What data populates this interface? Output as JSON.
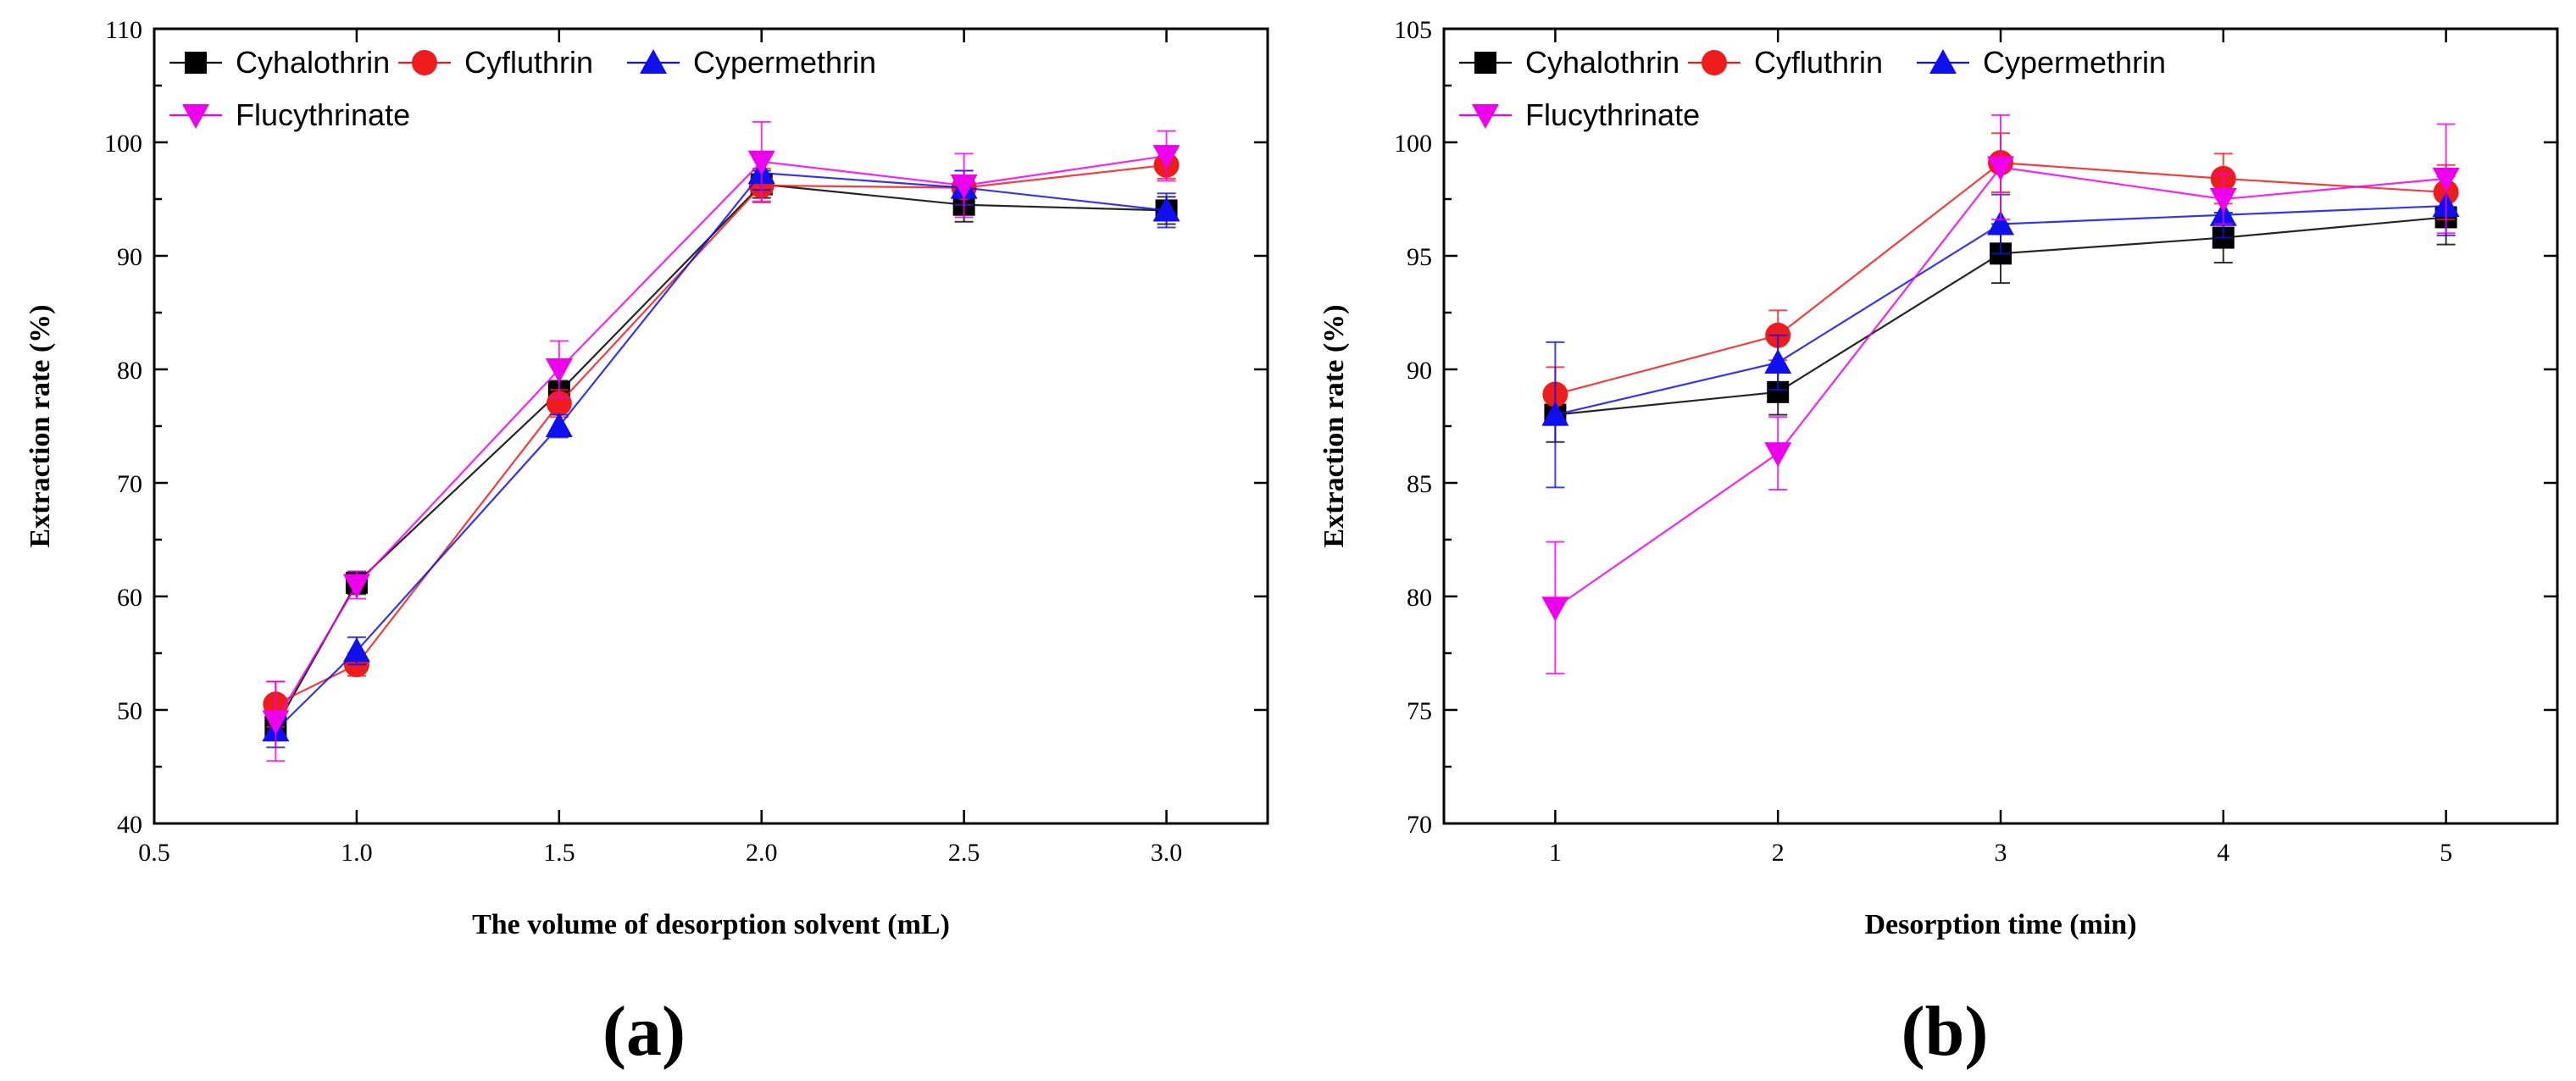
{
  "chart_data": [
    {
      "type": "line",
      "panel_label": "(a)",
      "xlabel": "The volume of desorption solvent (mL)",
      "ylabel": "Extraction rate (%)",
      "xlim": [
        0.5,
        3.25
      ],
      "ylim": [
        40,
        110
      ],
      "xticks": [
        0.5,
        1.0,
        1.5,
        2.0,
        2.5,
        3.0
      ],
      "xtick_labels": [
        "0.5",
        "1.0",
        "1.5",
        "2.0",
        "2.5",
        "3.0"
      ],
      "yticks": [
        40,
        50,
        60,
        70,
        80,
        90,
        100,
        110
      ],
      "ytick_labels": [
        "40",
        "50",
        "60",
        "70",
        "80",
        "90",
        "100",
        "110"
      ],
      "legend_position": "top-left",
      "x": [
        0.8,
        1.0,
        1.5,
        2.0,
        2.5,
        3.0
      ],
      "series": [
        {
          "name": "Cyhalothrin",
          "color": "#000000",
          "marker": "square",
          "values": [
            48.5,
            61.2,
            78.0,
            96.3,
            94.5,
            94.0
          ],
          "errors": [
            1.2,
            1.0,
            1.0,
            1.2,
            1.5,
            1.2
          ]
        },
        {
          "name": "Cyfluthrin",
          "color": "#ee1c1c",
          "marker": "circle",
          "values": [
            50.5,
            54.0,
            77.0,
            96.2,
            96.0,
            98.0
          ],
          "errors": [
            2.0,
            1.0,
            1.2,
            1.5,
            1.5,
            1.2
          ]
        },
        {
          "name": "Cypermethrin",
          "color": "#1010ee",
          "marker": "triangle-up",
          "values": [
            48.2,
            55.2,
            75.0,
            97.3,
            96.0,
            94.0
          ],
          "errors": [
            1.5,
            1.2,
            1.0,
            1.5,
            1.5,
            1.5
          ]
        },
        {
          "name": "Flucythrinate",
          "color": "#ee00ee",
          "marker": "triangle-down",
          "values": [
            49.0,
            61.0,
            80.0,
            98.3,
            96.2,
            98.8
          ],
          "errors": [
            3.5,
            1.2,
            2.5,
            3.5,
            2.8,
            2.2
          ]
        }
      ]
    },
    {
      "type": "line",
      "panel_label": "(b)",
      "xlabel": "Desorption time (min)",
      "ylabel": "Extraction rate (%)",
      "xlim": [
        0.5,
        5.5
      ],
      "ylim": [
        70,
        105
      ],
      "xticks": [
        1,
        2,
        3,
        4,
        5
      ],
      "xtick_labels": [
        "1",
        "2",
        "3",
        "4",
        "5"
      ],
      "yticks": [
        70,
        75,
        80,
        85,
        90,
        95,
        100,
        105
      ],
      "ytick_labels": [
        "70",
        "75",
        "80",
        "85",
        "90",
        "95",
        "100",
        "105"
      ],
      "legend_position": "top-left",
      "x": [
        1,
        2,
        3,
        4,
        5
      ],
      "series": [
        {
          "name": "Cyhalothrin",
          "color": "#000000",
          "marker": "square",
          "values": [
            88.0,
            89.0,
            95.1,
            95.8,
            96.7
          ],
          "errors": [
            1.2,
            1.0,
            1.3,
            1.1,
            1.2
          ]
        },
        {
          "name": "Cyfluthrin",
          "color": "#ee1c1c",
          "marker": "circle",
          "values": [
            88.9,
            91.5,
            99.1,
            98.4,
            97.8
          ],
          "errors": [
            1.2,
            1.1,
            1.3,
            1.1,
            1.2
          ]
        },
        {
          "name": "Cypermethrin",
          "color": "#1010ee",
          "marker": "triangle-up",
          "values": [
            88.0,
            90.3,
            96.4,
            96.8,
            97.2
          ],
          "errors": [
            3.2,
            1.2,
            1.3,
            1.0,
            1.3
          ]
        },
        {
          "name": "Flucythrinate",
          "color": "#ee00ee",
          "marker": "triangle-down",
          "values": [
            79.5,
            86.3,
            98.9,
            97.5,
            98.4
          ],
          "errors": [
            2.9,
            1.6,
            2.3,
            1.1,
            2.4
          ]
        }
      ]
    }
  ]
}
